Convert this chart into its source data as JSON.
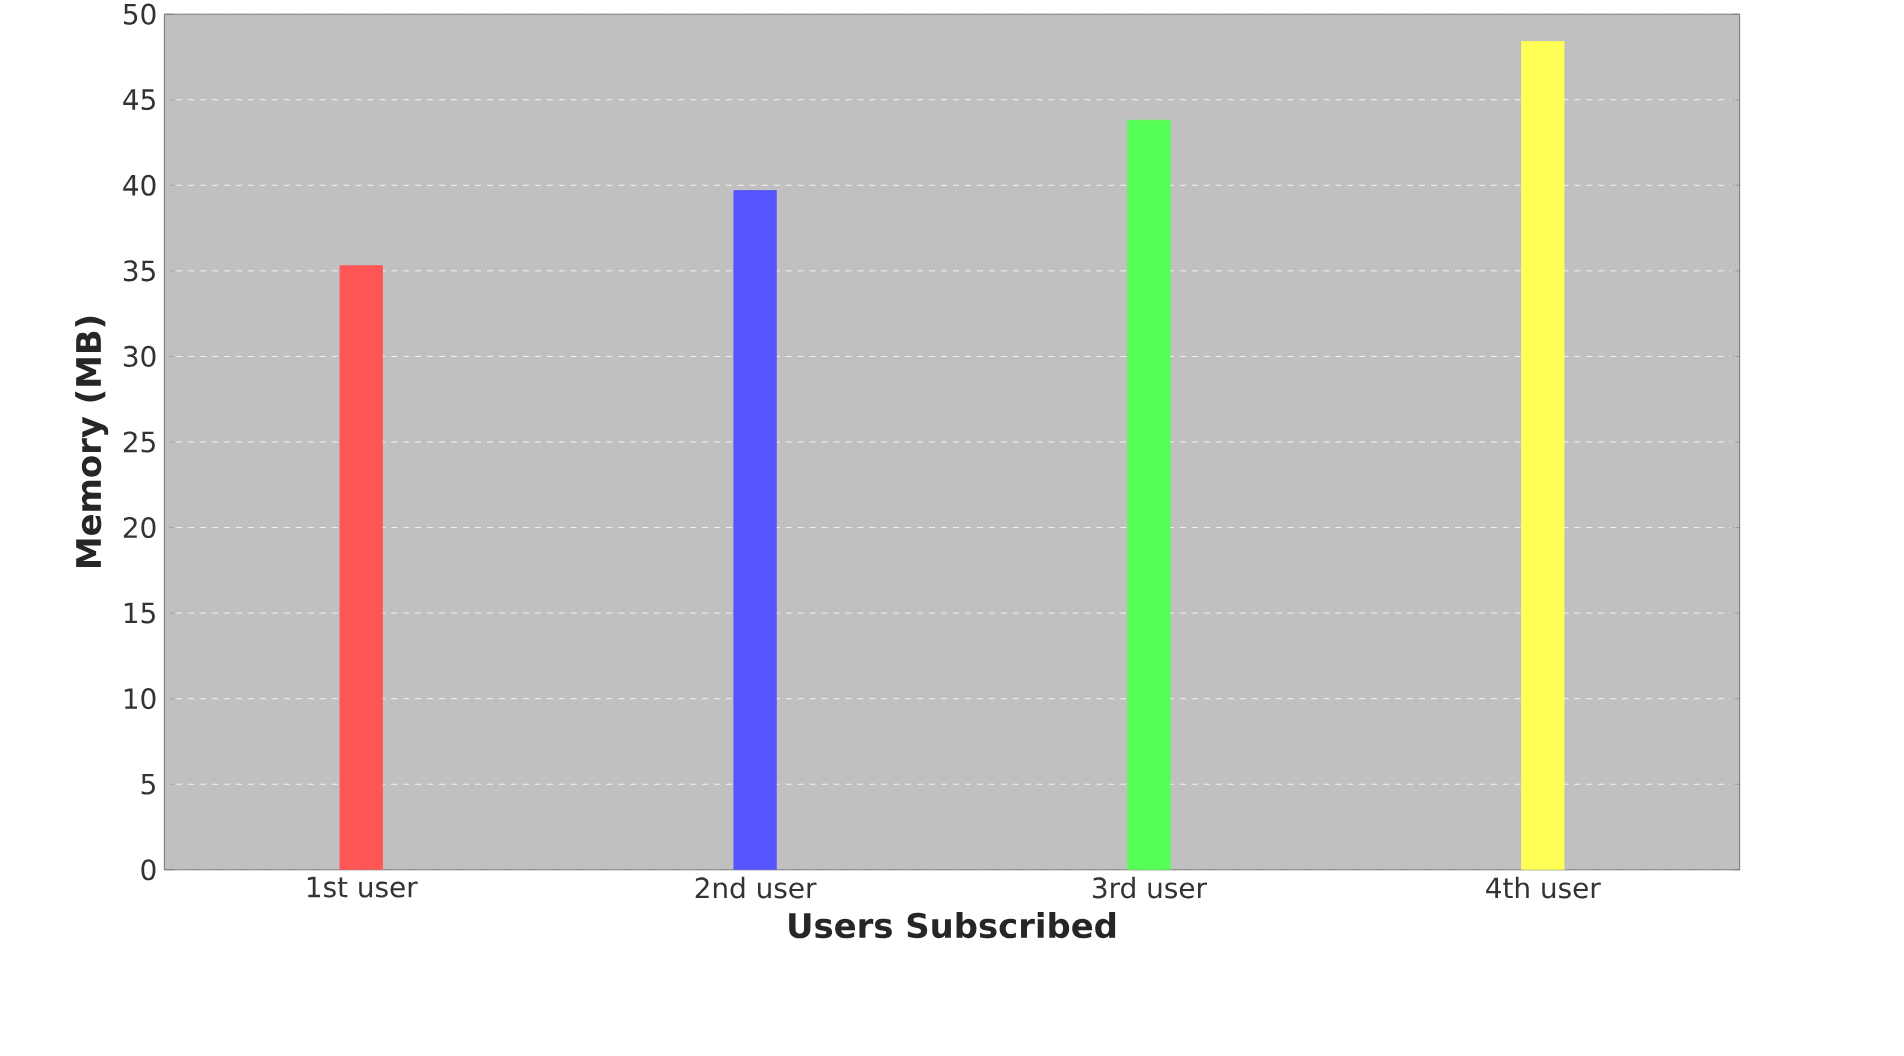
{
  "chart_data": {
    "type": "bar",
    "xlabel": "Users Subscribed",
    "ylabel": "Memory (MB)",
    "categories": [
      "1st user",
      "2nd user",
      "3rd user",
      "4th user"
    ],
    "values": [
      35.3,
      39.7,
      43.8,
      48.4
    ],
    "colors": [
      "#ff5555",
      "#5555ff",
      "#55ff55",
      "#ffff55"
    ],
    "ylim": [
      0,
      50
    ],
    "yticks": [
      0,
      5,
      10,
      15,
      20,
      25,
      30,
      35,
      40,
      45,
      50
    ],
    "grid": "y"
  }
}
